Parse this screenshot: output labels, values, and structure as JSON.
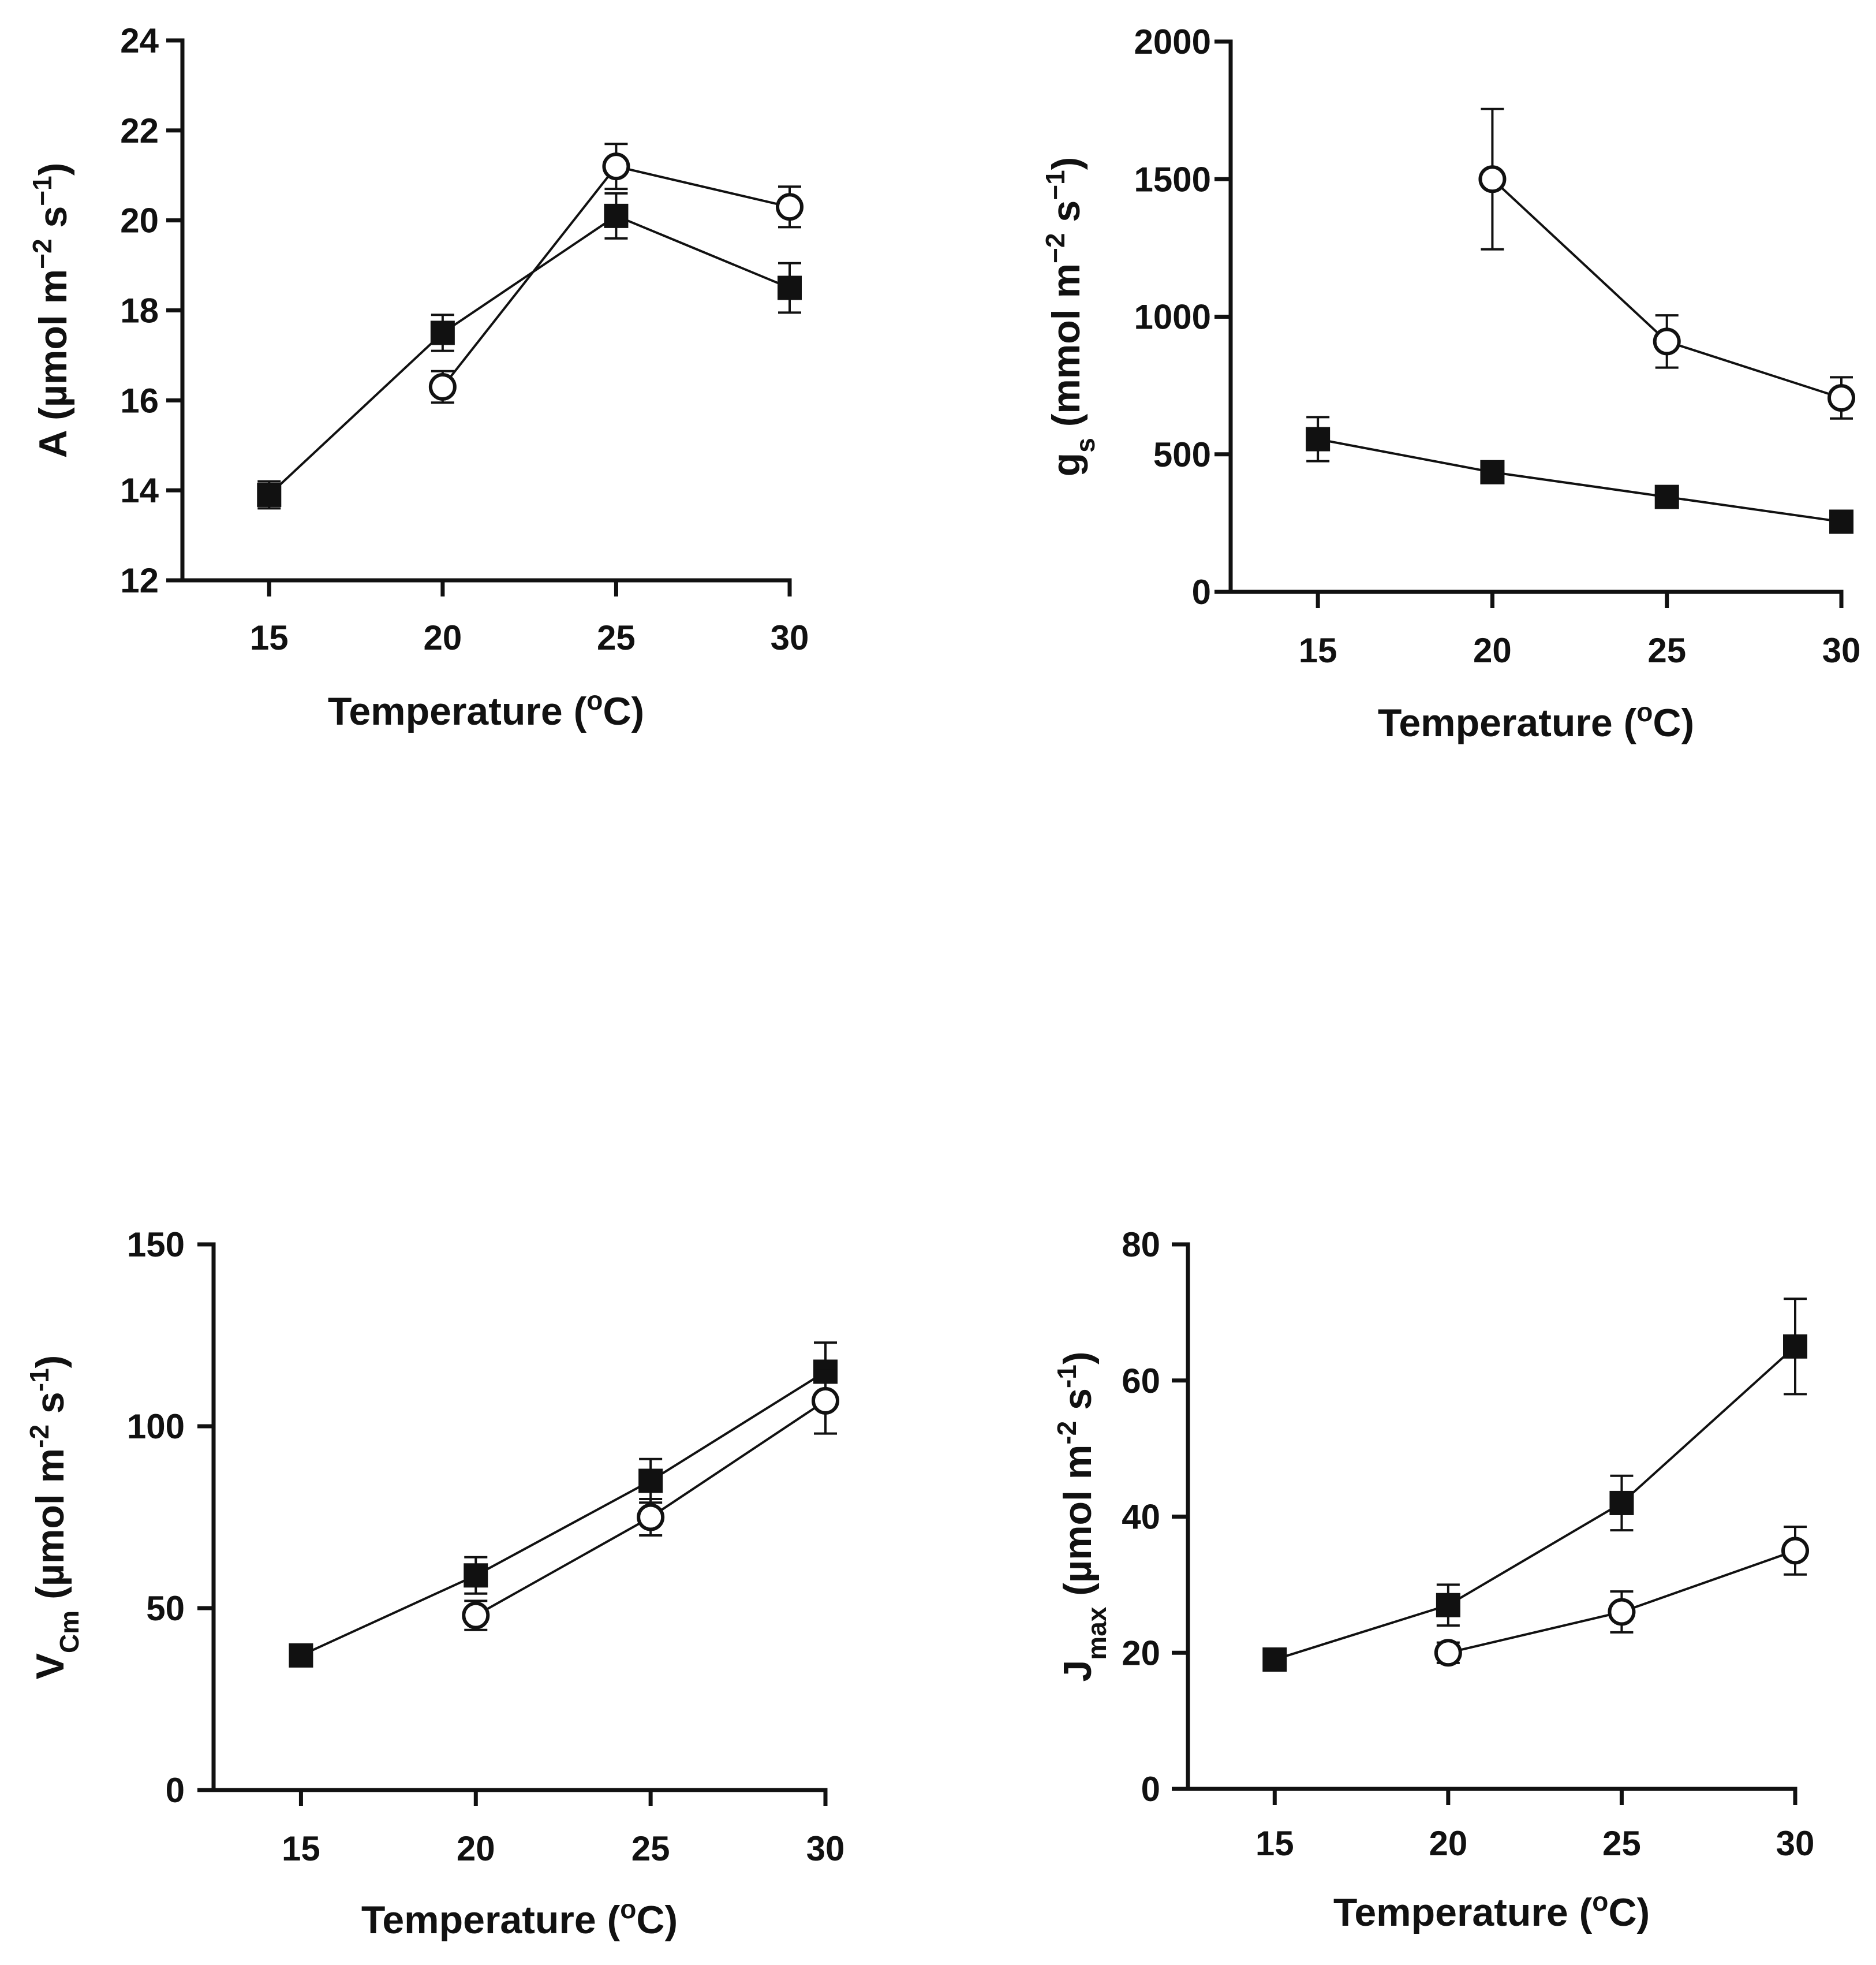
{
  "chart_data": [
    {
      "id": "photosynthesis",
      "type": "line",
      "xlabel": "Temperature (°C)",
      "xlabel_parts": [
        {
          "t": "Temperature ("
        },
        {
          "t": "o",
          "sup": true
        },
        {
          "t": "C)"
        }
      ],
      "ylabel": "A (µmol m−2 s−1)",
      "ylabel_parts": [
        {
          "t": "A (µmol m"
        },
        {
          "t": "−2",
          "sup": true
        },
        {
          "t": " s"
        },
        {
          "t": "−1",
          "sup": true
        },
        {
          "t": ")"
        }
      ],
      "x_ticks": [
        15,
        20,
        25,
        30
      ],
      "xlim": [
        12.5,
        30
      ],
      "y_ticks": [
        12,
        14,
        16,
        18,
        20,
        22,
        24
      ],
      "ylim": [
        12,
        24
      ],
      "grid": false,
      "series": [
        {
          "marker": "filled-square",
          "x": [
            15,
            20,
            25,
            30
          ],
          "y": [
            13.9,
            17.5,
            20.1,
            18.5
          ],
          "err": [
            0.3,
            0.4,
            0.5,
            0.55
          ]
        },
        {
          "marker": "open-circle",
          "x": [
            20,
            25,
            30
          ],
          "y": [
            16.3,
            21.2,
            20.3
          ],
          "err": [
            0.35,
            0.5,
            0.45
          ]
        }
      ]
    },
    {
      "id": "stomatal-conductance",
      "type": "line",
      "xlabel": "Temperature (°C)",
      "xlabel_parts": [
        {
          "t": "Temperature ("
        },
        {
          "t": "o",
          "sup": true
        },
        {
          "t": "C)"
        }
      ],
      "ylabel": "gs (mmol m−2 s−1)",
      "ylabel_parts": [
        {
          "t": "g"
        },
        {
          "t": "s",
          "sub": true
        },
        {
          "t": " (mmol m"
        },
        {
          "t": "−2",
          "sup": true
        },
        {
          "t": " s"
        },
        {
          "t": "−1",
          "sup": true
        },
        {
          "t": ")"
        }
      ],
      "x_ticks": [
        15,
        20,
        25,
        30
      ],
      "xlim": [
        12.5,
        30
      ],
      "y_ticks": [
        0,
        500,
        1000,
        1500,
        2000
      ],
      "ylim": [
        0,
        2000
      ],
      "grid": false,
      "series": [
        {
          "marker": "filled-square",
          "x": [
            15,
            20,
            25,
            30
          ],
          "y": [
            555,
            435,
            345,
            255
          ],
          "err": [
            80,
            30,
            25,
            20
          ]
        },
        {
          "marker": "open-circle",
          "x": [
            20,
            25,
            30
          ],
          "y": [
            1500,
            910,
            705
          ],
          "err": [
            255,
            95,
            75
          ]
        }
      ]
    },
    {
      "id": "vcmax",
      "type": "line",
      "xlabel": "Temperature (°C)",
      "xlabel_parts": [
        {
          "t": "Temperature ("
        },
        {
          "t": "o",
          "sup": true
        },
        {
          "t": "C)"
        }
      ],
      "ylabel": "VCm (µmol m-2 s-1)",
      "ylabel_parts": [
        {
          "t": "V"
        },
        {
          "t": "Cm",
          "sub": true
        },
        {
          "t": " (µmol m"
        },
        {
          "t": "-2",
          "sup": true
        },
        {
          "t": " s"
        },
        {
          "t": "-1",
          "sup": true
        },
        {
          "t": ")"
        }
      ],
      "x_ticks": [
        15,
        20,
        25,
        30
      ],
      "xlim": [
        12.5,
        30
      ],
      "y_ticks": [
        0,
        50,
        100,
        150
      ],
      "ylim": [
        0,
        150
      ],
      "grid": false,
      "series": [
        {
          "marker": "filled-square",
          "x": [
            15,
            20,
            25,
            30
          ],
          "y": [
            37,
            59,
            85,
            115
          ],
          "err": [
            2,
            5,
            6,
            8
          ]
        },
        {
          "marker": "open-circle",
          "x": [
            20,
            25,
            30
          ],
          "y": [
            48,
            75,
            107
          ],
          "err": [
            4,
            5,
            9
          ]
        }
      ]
    },
    {
      "id": "jmax",
      "type": "line",
      "xlabel": "Temperature (°C)",
      "xlabel_parts": [
        {
          "t": "Temperature ("
        },
        {
          "t": "o",
          "sup": true
        },
        {
          "t": "C)"
        }
      ],
      "ylabel": "Jmax (µmol m-2 s-1)",
      "ylabel_parts": [
        {
          "t": "J"
        },
        {
          "t": "max",
          "sub": true
        },
        {
          "t": " (µmol m"
        },
        {
          "t": "-2",
          "sup": true
        },
        {
          "t": " s"
        },
        {
          "t": "-1",
          "sup": true
        },
        {
          "t": ")"
        }
      ],
      "x_ticks": [
        15,
        20,
        25,
        30
      ],
      "xlim": [
        12.5,
        30
      ],
      "y_ticks": [
        0,
        20,
        40,
        60,
        80
      ],
      "ylim": [
        0,
        80
      ],
      "grid": false,
      "series": [
        {
          "marker": "filled-square",
          "x": [
            15,
            20,
            25,
            30
          ],
          "y": [
            19,
            27,
            42,
            65
          ],
          "err": [
            1.5,
            3,
            4,
            7
          ]
        },
        {
          "marker": "open-circle",
          "x": [
            20,
            25,
            30
          ],
          "y": [
            20,
            26,
            35
          ],
          "err": [
            1.5,
            3,
            3.5
          ]
        }
      ]
    }
  ]
}
